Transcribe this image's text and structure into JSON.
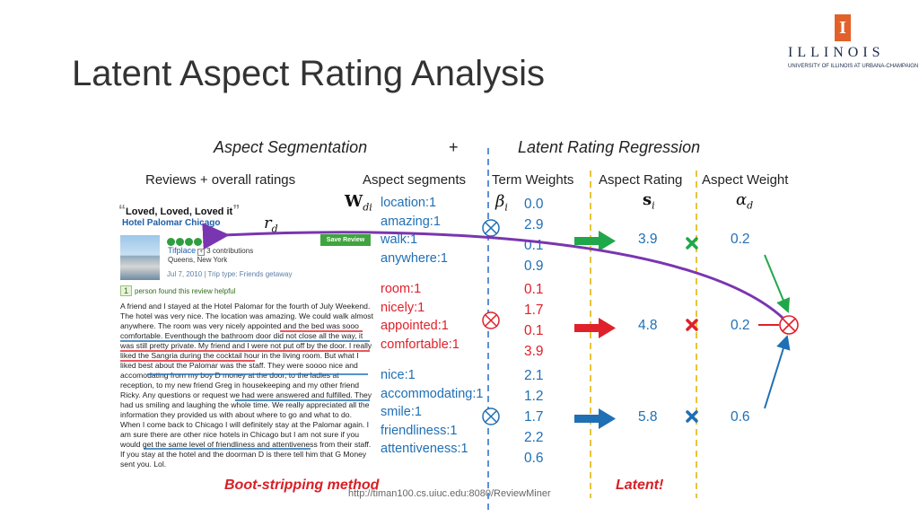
{
  "title": "Latent Aspect Rating Analysis",
  "logo": {
    "name": "ILLINOIS",
    "subtitle": "UNIVERSITY OF ILLINOIS AT URBANA-CHAMPAIGN",
    "mark": "I"
  },
  "headers": {
    "left": "Aspect Segmentation",
    "plus": "+",
    "right": "Latent Rating Regression"
  },
  "columns": {
    "reviews": "Reviews + overall ratings",
    "segments": "Aspect segments",
    "term_weights": "Term Weights",
    "aspect_rating": "Aspect Rating",
    "aspect_weight": "Aspect Weight"
  },
  "math": {
    "w": "W",
    "w_sub": "di",
    "r": "r",
    "r_sub": "d",
    "beta": "β",
    "beta_sub": "i",
    "s": "s",
    "s_sub": "i",
    "alpha": "α",
    "alpha_sub": "d"
  },
  "review": {
    "quote_open": "“",
    "title": "Loved, Loved, Loved it",
    "quote_close": "”",
    "hotel": "Hotel Palomar Chicago",
    "save_label": "Save Review",
    "reviewer": "Tifplace",
    "contributions": "3 contributions",
    "location": "Queens, New York",
    "meta": "Jul 7, 2010 | Trip type: Friends getaway",
    "helpful_count": "1",
    "helpful_text": "person found this review helpful",
    "body": "A friend and I stayed at the Hotel Palomar for the fourth of July Weekend. The hotel was very nice. The location was amazing. We could walk almost anywhere. The room was very nicely appointed and the bed was sooo comfortable. Eventhough the bathroom door did not close all the way, it was still pretty private. My friend and I were not put off by the door. I really liked the Sangria during the cocktail hour in the living room. But what I liked best about the Palomar was the staff. They were soooo nice and accomodating from my boy D money at the door, to the ladies at reception, to my new friend Greg in housekeeping and my other friend Ricky. Any questions or request we had were answered and fulfilled. They had us smiling and laughing the whole time. We really appreciated all the information they provided us with about where to go and what to do. When I come back to Chicago I will definitely stay at the Palomar again. I am sure there are other nice hotels in Chicago but I am not sure if you would get the same level of friendliness and attentiveness from their staff. If you stay at the hotel and the doorman D is there tell him that G Money sent you. Lol."
  },
  "groups": [
    {
      "words": [
        "location:1",
        "amazing:1",
        "walk:1",
        "anywhere:1"
      ],
      "weights": [
        "0.0",
        "2.9",
        "0.1",
        "0.9"
      ],
      "rating": "3.9",
      "weight": "0.2",
      "color": "#1fa84a",
      "mult_icon": "green-x-icon"
    },
    {
      "words": [
        "room:1",
        "nicely:1",
        "appointed:1",
        "comfortable:1"
      ],
      "weights": [
        "0.1",
        "1.7",
        "0.1",
        "3.9"
      ],
      "rating": "4.8",
      "weight": "0.2",
      "color": "#e0202a",
      "mult_icon": "red-x-icon"
    },
    {
      "words": [
        "nice:1",
        "accommodating:1",
        "smile:1",
        "friendliness:1",
        "attentiveness:1"
      ],
      "weights": [
        "2.1",
        "1.2",
        "1.7",
        "2.2",
        "0.6"
      ],
      "rating": "5.8",
      "weight": "0.6",
      "color": "#1f6fb5",
      "mult_icon": "blue-x-icon"
    }
  ],
  "footer": {
    "left": "Boot-stripping method",
    "right": "Latent!",
    "url": "http://timan100.cs.uiuc.edu:8080/ReviewMiner"
  },
  "colors": {
    "green": "#1fa84a",
    "red": "#e0202a",
    "blue": "#1f6fb5",
    "purple": "#7a35b0",
    "divider_blue": "#5b8fd6",
    "divider_yellow": "#e8c43a"
  }
}
